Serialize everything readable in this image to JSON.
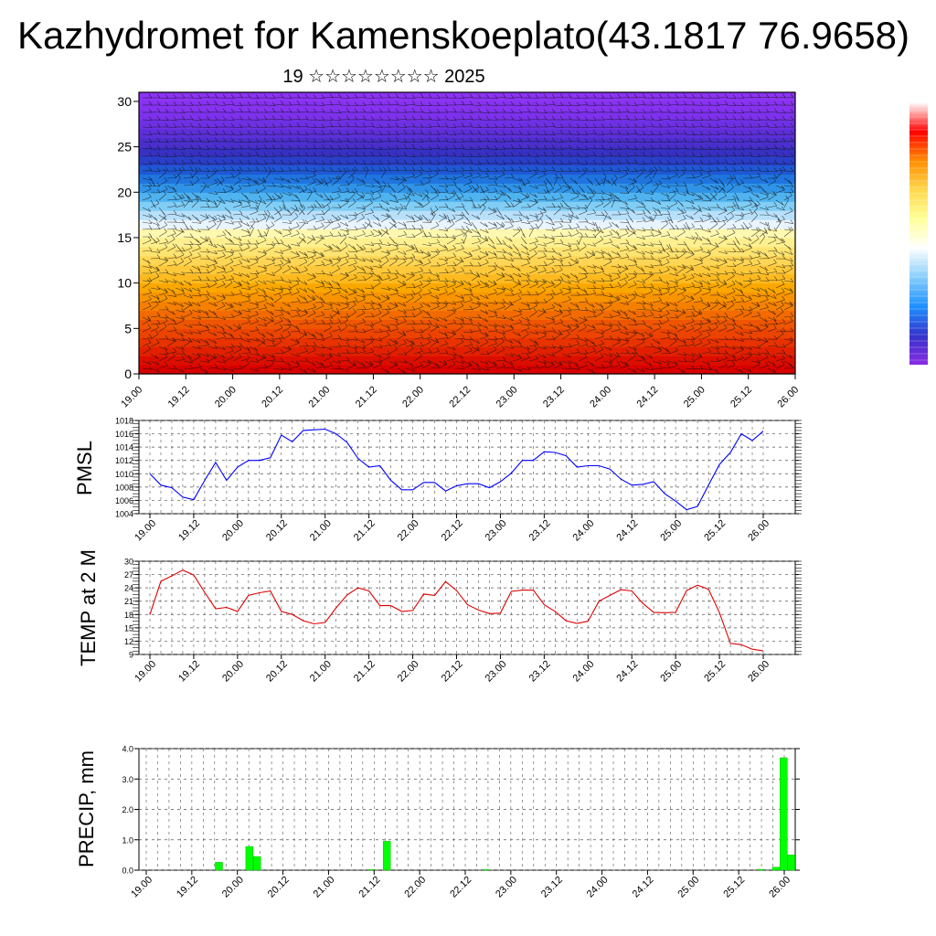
{
  "title": "Kazhydromet for Kamenskoeplato(43.1817 76.9658)",
  "subtitle": "19 ☆☆☆☆☆☆☆☆ 2025",
  "x_ticks": [
    "19.00",
    "19.12",
    "20.00",
    "20.12",
    "21.00",
    "21.12",
    "22.00",
    "22.12",
    "23.00",
    "23.12",
    "24.00",
    "24.12",
    "25.00",
    "25.12",
    "26.00"
  ],
  "chart_data": [
    {
      "type": "heatmap",
      "title": "",
      "ylabel": "",
      "ylim": [
        0,
        31
      ],
      "y_ticks": [
        "0",
        "5",
        "10",
        "15",
        "20",
        "25",
        "30"
      ],
      "colorbar": [
        "#ffffff",
        "#ff0000",
        "#ff8c00",
        "#ffd84d",
        "#ffff99",
        "#ffffff",
        "#87cefa",
        "#1e90ff",
        "#3333cc",
        "#8a2be2"
      ],
      "y_levels": [
        0,
        1,
        2,
        3,
        4,
        5,
        6,
        7,
        8,
        9,
        10,
        11,
        12,
        13,
        14,
        15,
        16,
        17,
        18,
        19,
        20,
        21,
        22,
        23,
        24,
        25,
        26,
        27,
        28,
        29,
        30,
        31
      ],
      "band_colors": [
        "#d90000",
        "#dc0e00",
        "#e22000",
        "#e83200",
        "#ec4400",
        "#ef5500",
        "#f26a00",
        "#f58000",
        "#f89400",
        "#faa700",
        "#fcba20",
        "#fdc83a",
        "#fed655",
        "#fee370",
        "#fff08f",
        "#fff8b0",
        "#e8f4ff",
        "#b8e0fb",
        "#80cdf5",
        "#4fb3f0",
        "#2f93e8",
        "#1f74de",
        "#1f58d4",
        "#2a3ec9",
        "#3830c3",
        "#4a2fcd",
        "#5d2fd9",
        "#6e30e4",
        "#7d31ec",
        "#8632f0",
        "#8c33f4"
      ]
    },
    {
      "type": "line",
      "title": "",
      "ylabel": "PMSL",
      "ylim": [
        1004,
        1018
      ],
      "y_ticks": [
        "1004",
        "1006",
        "1008",
        "1010",
        "1012",
        "1014",
        "1016",
        "1018"
      ],
      "series": [
        {
          "color": "#0000ff",
          "values": [
            1010,
            1008.3,
            1007.9,
            1006.5,
            1006.1,
            1009,
            1011.7,
            1009,
            1011,
            1012,
            1012,
            1012.4,
            1015.8,
            1014.8,
            1016.5,
            1016.6,
            1016.7,
            1016,
            1014.7,
            1012.3,
            1011,
            1011.2,
            1009,
            1007.6,
            1007.6,
            1008.7,
            1008.7,
            1007.4,
            1008.2,
            1008.5,
            1008.5,
            1007.9,
            1008.8,
            1010.1,
            1012,
            1012,
            1013.3,
            1013.2,
            1012.7,
            1011,
            1011.2,
            1011.2,
            1010.7,
            1009.2,
            1008.3,
            1008.4,
            1008.8,
            1007,
            1005.9,
            1004.6,
            1005.1,
            1008.3,
            1011.4,
            1013.2,
            1016,
            1015,
            1016.4
          ]
        }
      ]
    },
    {
      "type": "line",
      "title": "",
      "ylabel": "TEMP at 2 M",
      "ylim": [
        9,
        30
      ],
      "y_ticks": [
        "9",
        "12",
        "15",
        "18",
        "21",
        "24",
        "27",
        "30"
      ],
      "series": [
        {
          "color": "#e00000",
          "values": [
            18,
            25.5,
            26.7,
            28,
            26.9,
            23,
            19.3,
            19.6,
            18.7,
            22.3,
            22.9,
            23.3,
            18.7,
            18,
            16.6,
            15.9,
            16.2,
            19.5,
            22.4,
            24,
            23.3,
            20,
            20,
            18.7,
            18.9,
            22.6,
            22.3,
            25.4,
            23.4,
            20.2,
            19,
            18.2,
            18.3,
            23.2,
            23.5,
            23.5,
            20.2,
            18.7,
            16.6,
            16,
            16.5,
            21,
            22.3,
            23.6,
            23.3,
            20.5,
            18.5,
            18.4,
            18.5,
            23.4,
            24.6,
            23.7,
            18.4,
            11.5,
            11.2,
            10.2,
            9.8
          ]
        }
      ]
    },
    {
      "type": "bar",
      "title": "",
      "ylabel": "PRECIP, mm",
      "ylim": [
        0,
        4
      ],
      "y_ticks": [
        "0.0",
        "1.0",
        "2.0",
        "3.0",
        "4.0"
      ],
      "color": "#00ff00",
      "values": [
        0,
        0,
        0,
        0,
        0,
        0,
        0,
        0,
        0,
        0,
        0.26,
        0,
        0,
        0,
        0.78,
        0.45,
        0,
        0,
        0,
        0,
        0,
        0,
        0,
        0,
        0,
        0,
        0,
        0,
        0,
        0,
        0.02,
        0,
        0.95,
        0,
        0,
        0,
        0,
        0,
        0,
        0,
        0,
        0,
        0,
        0,
        0,
        0.02,
        0,
        0,
        0,
        0,
        0,
        0,
        0,
        0,
        0,
        0,
        0,
        0,
        0,
        0,
        0,
        0,
        0,
        0,
        0,
        0,
        0,
        0,
        0,
        0,
        0,
        0,
        0,
        0,
        0,
        0,
        0,
        0,
        0,
        0,
        0,
        0.03,
        0,
        0.1,
        3.7,
        0.5
      ]
    }
  ]
}
